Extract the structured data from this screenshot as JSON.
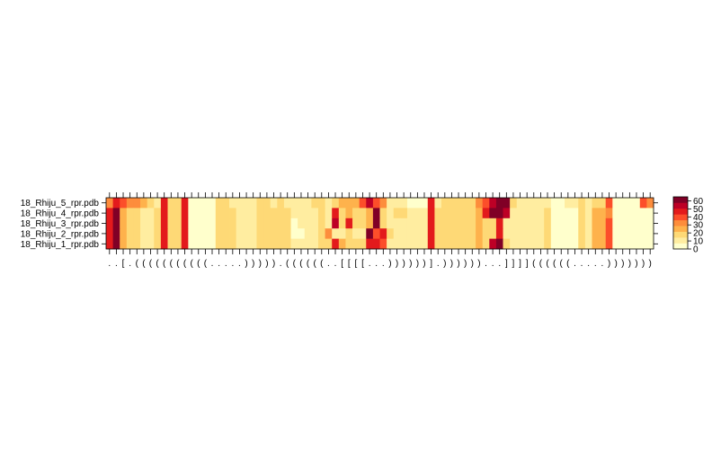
{
  "chart_data": {
    "type": "heatmap",
    "title": "",
    "xlabel": "",
    "ylabel": "",
    "rows": [
      "18_Rhiju_5_rpr.pdb",
      "18_Rhiju_4_rpr.pdb",
      "18_Rhiju_3_rpr.pdb",
      "18_Rhiju_2_rpr.pdb",
      "18_Rhiju_1_rpr.pdb"
    ],
    "x_tick_labels": [
      ".",
      ".",
      "[",
      ".",
      "(",
      "(",
      "(",
      "(",
      "(",
      "(",
      "(",
      "(",
      "(",
      "(",
      "(",
      ".",
      ".",
      ".",
      ".",
      ".",
      ")",
      ")",
      ")",
      ")",
      ")",
      ".",
      "(",
      "(",
      "(",
      "(",
      "(",
      "(",
      ".",
      ".",
      "[",
      "[",
      "[",
      "[",
      ".",
      ".",
      ".",
      ")",
      ")",
      ")",
      ")",
      ")",
      ")",
      "]",
      ".",
      ")",
      ")",
      ")",
      ")",
      ")",
      ")",
      ".",
      ".",
      ".",
      "]",
      "]",
      "]",
      "]",
      "(",
      "(",
      "(",
      "(",
      "(",
      "(",
      ".",
      ".",
      ".",
      ".",
      ".",
      ")",
      ")",
      ")",
      ")",
      ")",
      ")",
      ")"
    ],
    "colorbar": {
      "range": [
        0,
        65
      ],
      "ticks": [
        0,
        10,
        20,
        30,
        40,
        50,
        60
      ]
    },
    "color_scale": [
      "#ffffcc",
      "#ffeda0",
      "#fed976",
      "#feb24c",
      "#fd8d3c",
      "#fc4e2a",
      "#e31a1c",
      "#bd0026",
      "#800026"
    ],
    "values": [
      [
        30,
        50,
        40,
        35,
        30,
        25,
        15,
        10,
        45,
        15,
        15,
        50,
        5,
        5,
        5,
        5,
        15,
        15,
        10,
        10,
        10,
        10,
        15,
        20,
        10,
        20,
        10,
        10,
        10,
        10,
        20,
        15,
        10,
        15,
        25,
        25,
        25,
        40,
        55,
        40,
        30,
        10,
        10,
        10,
        5,
        5,
        5,
        45,
        10,
        15,
        15,
        15,
        20,
        20,
        35,
        40,
        55,
        65,
        60,
        15,
        10,
        10,
        10,
        10,
        10,
        5,
        5,
        10,
        10,
        20,
        10,
        20,
        20,
        40,
        5,
        5,
        5,
        5,
        40,
        30
      ],
      [
        50,
        60,
        25,
        15,
        15,
        10,
        10,
        20,
        50,
        20,
        20,
        50,
        5,
        5,
        5,
        5,
        15,
        15,
        15,
        10,
        10,
        10,
        15,
        20,
        15,
        20,
        20,
        10,
        10,
        10,
        10,
        15,
        10,
        50,
        15,
        25,
        15,
        20,
        25,
        60,
        15,
        10,
        15,
        15,
        10,
        10,
        10,
        50,
        15,
        20,
        20,
        20,
        15,
        15,
        25,
        45,
        60,
        65,
        55,
        10,
        10,
        10,
        10,
        10,
        15,
        5,
        5,
        5,
        5,
        20,
        10,
        25,
        25,
        35,
        5,
        5,
        5,
        5,
        5,
        5
      ],
      [
        50,
        60,
        25,
        15,
        15,
        10,
        10,
        20,
        50,
        20,
        20,
        50,
        5,
        5,
        5,
        5,
        15,
        15,
        15,
        10,
        10,
        10,
        15,
        20,
        15,
        20,
        20,
        5,
        10,
        10,
        10,
        15,
        10,
        55,
        20,
        45,
        20,
        15,
        25,
        60,
        20,
        10,
        10,
        10,
        10,
        10,
        10,
        50,
        15,
        20,
        20,
        20,
        15,
        15,
        25,
        15,
        15,
        50,
        10,
        10,
        10,
        10,
        10,
        10,
        15,
        5,
        5,
        5,
        5,
        20,
        10,
        25,
        25,
        40,
        5,
        5,
        5,
        5,
        5,
        5
      ],
      [
        50,
        60,
        25,
        15,
        15,
        10,
        10,
        20,
        50,
        20,
        20,
        50,
        5,
        5,
        5,
        5,
        15,
        15,
        15,
        10,
        10,
        10,
        15,
        20,
        15,
        20,
        20,
        5,
        5,
        10,
        10,
        15,
        35,
        10,
        10,
        15,
        10,
        10,
        60,
        40,
        45,
        15,
        10,
        10,
        10,
        10,
        10,
        50,
        15,
        20,
        20,
        20,
        15,
        15,
        25,
        15,
        15,
        50,
        10,
        10,
        10,
        10,
        10,
        10,
        15,
        5,
        5,
        5,
        5,
        20,
        10,
        25,
        25,
        40,
        5,
        5,
        5,
        5,
        5,
        5
      ],
      [
        50,
        60,
        25,
        15,
        15,
        10,
        10,
        20,
        50,
        20,
        20,
        50,
        5,
        5,
        5,
        5,
        15,
        15,
        15,
        10,
        10,
        10,
        15,
        20,
        15,
        20,
        20,
        10,
        10,
        10,
        10,
        15,
        20,
        50,
        25,
        15,
        15,
        15,
        45,
        50,
        40,
        10,
        10,
        10,
        10,
        10,
        10,
        50,
        15,
        20,
        20,
        20,
        15,
        15,
        25,
        20,
        55,
        65,
        20,
        10,
        10,
        10,
        10,
        10,
        15,
        5,
        5,
        5,
        5,
        20,
        10,
        25,
        25,
        40,
        5,
        5,
        5,
        5,
        5,
        5
      ]
    ]
  }
}
